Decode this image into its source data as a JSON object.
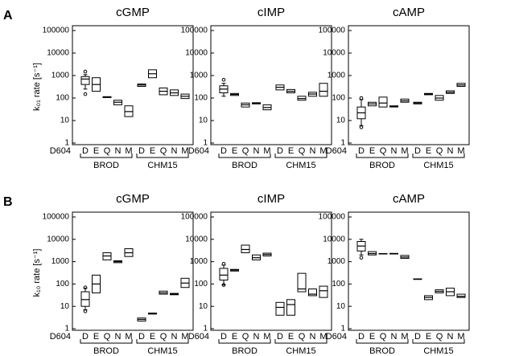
{
  "chart_data": [
    {
      "type": "box",
      "panel_label": "A",
      "ylabel": "k₀₁ rate [s⁻¹]",
      "title": "cGMP",
      "x_prefix": "D604",
      "categories": [
        "D",
        "E",
        "Q",
        "N",
        "M",
        "D",
        "E",
        "Q",
        "N",
        "M"
      ],
      "groups": [
        "BROD",
        "CHM15"
      ],
      "whisker_low": [
        250,
        null,
        null,
        null,
        null,
        null,
        null,
        null,
        null,
        null
      ],
      "q1": [
        400,
        200,
        105,
        50,
        15,
        330,
        800,
        140,
        130,
        95
      ],
      "median": [
        700,
        400,
        110,
        65,
        25,
        380,
        1200,
        200,
        170,
        120
      ],
      "q3": [
        900,
        800,
        115,
        80,
        45,
        420,
        1800,
        280,
        230,
        150
      ],
      "whisker_high": [
        1100,
        null,
        null,
        null,
        null,
        null,
        null,
        null,
        null,
        null
      ],
      "outliers": [
        [
          1500,
          150
        ],
        [],
        [],
        [],
        [],
        [],
        [],
        [],
        [],
        []
      ],
      "ylim": [
        1,
        100000
      ],
      "yticks": [
        1,
        10,
        100,
        1000,
        10000,
        100000
      ],
      "log_y": true,
      "color": "#000000"
    },
    {
      "type": "box",
      "title": "cIMP",
      "x_prefix": "D604",
      "categories": [
        "D",
        "E",
        "Q",
        "N",
        "M",
        "D",
        "E",
        "Q",
        "N",
        "M"
      ],
      "groups": [
        "BROD",
        "CHM15"
      ],
      "whisker_low": [
        120,
        null,
        null,
        null,
        null,
        null,
        null,
        null,
        null,
        null
      ],
      "q1": [
        170,
        130,
        40,
        55,
        30,
        230,
        170,
        80,
        120,
        120
      ],
      "median": [
        250,
        145,
        50,
        58,
        38,
        300,
        200,
        95,
        150,
        200
      ],
      "q3": [
        350,
        160,
        60,
        62,
        50,
        380,
        240,
        120,
        180,
        450
      ],
      "whisker_high": [
        450,
        null,
        null,
        null,
        null,
        null,
        null,
        null,
        null,
        null
      ],
      "outliers": [
        [
          650
        ],
        [],
        [],
        [],
        [],
        [],
        [],
        [],
        [],
        []
      ],
      "ylim": [
        1,
        100000
      ],
      "yticks": [
        1,
        10,
        100,
        1000,
        10000,
        100000
      ],
      "log_y": true,
      "color": "#000000"
    },
    {
      "type": "box",
      "title": "cAMP",
      "x_prefix": "D604",
      "categories": [
        "D",
        "E",
        "Q",
        "N",
        "M",
        "D",
        "E",
        "Q",
        "N",
        "M"
      ],
      "groups": [
        "BROD",
        "CHM15"
      ],
      "whisker_low": [
        6,
        null,
        null,
        null,
        null,
        null,
        null,
        null,
        null,
        null
      ],
      "q1": [
        12,
        45,
        40,
        40,
        65,
        55,
        140,
        80,
        160,
        330
      ],
      "median": [
        22,
        55,
        60,
        42,
        75,
        60,
        150,
        100,
        180,
        380
      ],
      "q3": [
        40,
        65,
        110,
        45,
        90,
        65,
        160,
        130,
        210,
        450
      ],
      "whisker_high": [
        85,
        null,
        null,
        null,
        null,
        null,
        null,
        null,
        null,
        null
      ],
      "outliers": [
        [
          100,
          5
        ],
        [],
        [],
        [],
        [],
        [],
        [],
        [],
        [],
        []
      ],
      "ylim": [
        1,
        100000
      ],
      "yticks": [
        1,
        10,
        100,
        1000,
        10000,
        100000
      ],
      "log_y": true,
      "color": "#000000"
    },
    {
      "type": "box",
      "panel_label": "B",
      "ylabel": "k₁₀ rate [s⁻¹]",
      "title": "cGMP",
      "x_prefix": "D604",
      "categories": [
        "D",
        "E",
        "Q",
        "N",
        "M",
        "D",
        "E",
        "Q",
        "N",
        "M"
      ],
      "groups": [
        "BROD",
        "CHM15"
      ],
      "whisker_low": [
        7,
        null,
        null,
        null,
        null,
        null,
        null,
        null,
        null,
        null
      ],
      "q1": [
        10,
        40,
        1200,
        900,
        1700,
        2.2,
        4.5,
        35,
        33,
        70
      ],
      "median": [
        20,
        100,
        1800,
        1000,
        2500,
        2.6,
        4.7,
        40,
        35,
        110
      ],
      "q3": [
        45,
        250,
        2500,
        1100,
        3800,
        3,
        5,
        48,
        38,
        180
      ],
      "whisker_high": [
        65,
        null,
        null,
        null,
        null,
        null,
        null,
        null,
        null,
        null
      ],
      "outliers": [
        [
          70,
          6
        ],
        [],
        [],
        [],
        [],
        [],
        [],
        [],
        [],
        []
      ],
      "ylim": [
        1,
        100000
      ],
      "yticks": [
        1,
        10,
        100,
        1000,
        10000,
        100000
      ],
      "log_y": true,
      "color": "#000000"
    },
    {
      "type": "box",
      "title": "cIMP",
      "x_prefix": "D604",
      "categories": [
        "D",
        "E",
        "Q",
        "N",
        "M",
        "D",
        "E",
        "Q",
        "N",
        "M"
      ],
      "groups": [
        "BROD",
        "CHM15"
      ],
      "whisker_low": [
        90,
        null,
        null,
        null,
        null,
        null,
        null,
        null,
        null,
        null
      ],
      "q1": [
        150,
        380,
        2500,
        1200,
        1800,
        4,
        4,
        45,
        30,
        25
      ],
      "median": [
        250,
        420,
        3500,
        1500,
        2100,
        9,
        12,
        60,
        35,
        50
      ],
      "q3": [
        500,
        450,
        5500,
        2000,
        2400,
        15,
        20,
        300,
        60,
        80
      ],
      "whisker_high": [
        700,
        null,
        null,
        null,
        null,
        null,
        null,
        null,
        null,
        null
      ],
      "outliers": [
        [
          800,
          90
        ],
        [],
        [],
        [],
        [],
        [],
        [],
        [],
        [],
        []
      ],
      "ylim": [
        1,
        100000
      ],
      "yticks": [
        1,
        10,
        100,
        1000,
        10000,
        100000
      ],
      "log_y": true,
      "color": "#000000"
    },
    {
      "type": "box",
      "title": "cAMP",
      "x_prefix": "D604",
      "categories": [
        "D",
        "E",
        "Q",
        "N",
        "M",
        "D",
        "E",
        "Q",
        "N",
        "M"
      ],
      "groups": [
        "BROD",
        "CHM15"
      ],
      "whisker_low": [
        2000,
        null,
        null,
        null,
        null,
        null,
        null,
        null,
        null,
        null
      ],
      "q1": [
        3000,
        2000,
        2200,
        2200,
        1400,
        160,
        20,
        40,
        30,
        25
      ],
      "median": [
        5000,
        2300,
        2250,
        2250,
        1600,
        165,
        25,
        47,
        45,
        28
      ],
      "q3": [
        8000,
        2800,
        2300,
        2350,
        1900,
        170,
        30,
        55,
        65,
        35
      ],
      "whisker_high": [
        10000,
        null,
        null,
        null,
        null,
        null,
        null,
        null,
        null,
        null
      ],
      "outliers": [
        [
          1500
        ],
        [],
        [],
        [],
        [],
        [],
        [],
        [],
        [],
        []
      ],
      "ylim": [
        1,
        100000
      ],
      "yticks": [
        1,
        10,
        100,
        1000,
        10000,
        100000
      ],
      "log_y": true,
      "color": "#000000"
    }
  ]
}
